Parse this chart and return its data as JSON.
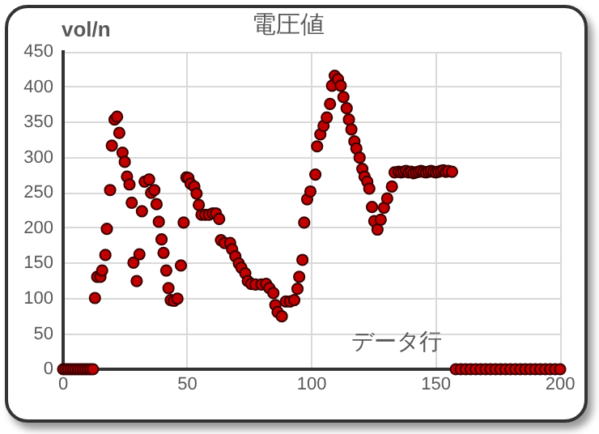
{
  "chart_data": {
    "type": "scatter",
    "title": "電圧値",
    "ylabel": "vol/n",
    "xlabel": "データ行",
    "x": [
      0,
      1,
      2,
      3,
      4,
      5,
      6,
      7,
      8,
      9,
      10,
      11,
      12,
      12.8,
      13.7,
      15,
      15.7,
      17,
      17.6,
      18.9,
      19.6,
      20.7,
      21.7,
      22.6,
      23.9,
      24.8,
      25.7,
      26.7,
      27.6,
      28.3,
      29.6,
      30.7,
      31.7,
      32.8,
      34.6,
      35.4,
      36.7,
      37.6,
      38.5,
      39.6,
      40.4,
      41.5,
      42.4,
      43.3,
      44.6,
      46,
      47.4,
      48.5,
      49.6,
      50.4,
      51.3,
      52.8,
      53.7,
      54.6,
      55.7,
      57.2,
      58.7,
      60.2,
      61.5,
      62.8,
      63.5,
      65,
      67.2,
      68,
      69.3,
      70.7,
      71.7,
      73.3,
      74.3,
      75.7,
      77.4,
      79.8,
      81.7,
      83,
      84.6,
      85.4,
      86.3,
      88,
      89.6,
      91.3,
      93,
      94.3,
      95,
      96.3,
      97,
      98.2,
      99.5,
      101.5,
      102.2,
      103.5,
      104.8,
      106.1,
      107.4,
      108.2,
      109.3,
      110.6,
      111.7,
      112.8,
      114.1,
      115,
      116,
      117.2,
      118,
      119.3,
      120.4,
      121.3,
      122.4,
      123.2,
      124.3,
      125.2,
      126.5,
      127.8,
      129.1,
      130.4,
      132.3,
      133.4,
      135,
      136,
      137,
      138,
      139,
      140,
      141,
      142,
      143,
      144,
      145,
      146,
      147,
      148,
      149,
      150,
      151,
      152,
      153,
      154,
      155,
      156.5,
      158,
      160,
      162,
      164,
      166,
      168,
      170,
      172,
      174,
      176,
      178,
      180,
      182,
      184,
      186,
      188,
      190,
      192,
      194,
      196,
      198,
      200
    ],
    "values": [
      0,
      0,
      0,
      0,
      0,
      0,
      0,
      0,
      0,
      0,
      0,
      0,
      0,
      101,
      131,
      131,
      140,
      162,
      199,
      254,
      317,
      354,
      358,
      335,
      307,
      294,
      273,
      262,
      236,
      151,
      125,
      163,
      224,
      266,
      269,
      250,
      254,
      234,
      209,
      184,
      165,
      140,
      115,
      98,
      97,
      100,
      147,
      208,
      272,
      271,
      263,
      259,
      249,
      233,
      219,
      219,
      219,
      221,
      221,
      213,
      183,
      179,
      179,
      170,
      160,
      150,
      144,
      136,
      125,
      121,
      120,
      120,
      121,
      115,
      108,
      91,
      81,
      75,
      96,
      96,
      98,
      114,
      131,
      155,
      208,
      241,
      252,
      276,
      316,
      333,
      345,
      357,
      376,
      402,
      416,
      411,
      402,
      386,
      370,
      354,
      340,
      323,
      313,
      300,
      284,
      273,
      266,
      256,
      230,
      210,
      198,
      212,
      229,
      242,
      259,
      279,
      280,
      279,
      280,
      281,
      279,
      280,
      278,
      279,
      280,
      281,
      280,
      279,
      280,
      281,
      280,
      279,
      280,
      281,
      282,
      280,
      281,
      280,
      0,
      0,
      0,
      0,
      0,
      0,
      0,
      0,
      0,
      0,
      0,
      0,
      0,
      0,
      0,
      0,
      0,
      0,
      0,
      0,
      0,
      0
    ],
    "color": "#c00000",
    "marker": "circle",
    "xlim": [
      0,
      200
    ],
    "xticks": [
      0,
      50,
      100,
      150,
      200
    ],
    "ylim": [
      0,
      450
    ],
    "yticks": [
      0,
      50,
      100,
      150,
      200,
      250,
      300,
      350,
      400,
      450
    ],
    "grid": true,
    "legend": false
  }
}
